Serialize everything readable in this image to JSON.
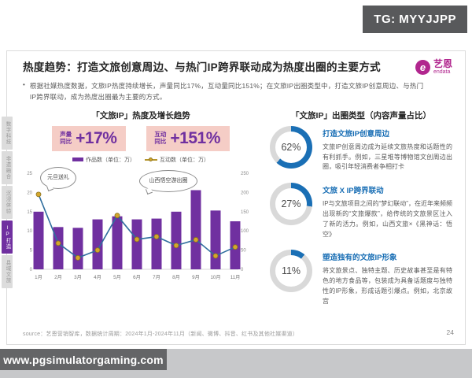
{
  "badge": {
    "text": "TG: MYYJJPP"
  },
  "watermark": {
    "url": "www.pgsimulatorgaming.com"
  },
  "page": {
    "number": "24"
  },
  "sidebar": {
    "items": [
      {
        "label": "数字科技",
        "active": false
      },
      {
        "label": "非遗融合",
        "active": false
      },
      {
        "label": "沉浸体验",
        "active": false
      },
      {
        "label": "IP打造",
        "active": true
      },
      {
        "label": "县域文旅",
        "active": false
      }
    ]
  },
  "header": {
    "title": "热度趋势：打造文旅创意周边、与热门IP跨界联动成为热度出圈的主要方式",
    "logo": {
      "cn": "艺恩",
      "en": "endata",
      "mark": "e"
    },
    "bullet": "根据社媒热度数据，文旅IP热度持续增长，声量同比17%，互动量同比151%；在文旅IP出圈类型中，打造文旅IP创意周边、与热门IP跨界联动，成为热度出圈最为主要的方式。"
  },
  "left_panel": {
    "title": "「文旅IP」热度及增长趋势",
    "stats": [
      {
        "label_line1": "声量",
        "label_line2": "同比",
        "value": "+17%"
      },
      {
        "label_line1": "互动",
        "label_line2": "同比",
        "value": "+151%"
      }
    ],
    "annotations": {
      "a0": "元旦送礼",
      "a1": "山西悟空游出圈"
    }
  },
  "chart_data": {
    "type": "combo",
    "title": "「文旅IP」热度及增长趋势",
    "categories": [
      "1月",
      "2月",
      "3月",
      "4月",
      "5月",
      "6月",
      "7月",
      "8月",
      "9月",
      "10月",
      "11月"
    ],
    "series": [
      {
        "name": "作品数（单位：万）",
        "type": "bar",
        "axis": "left",
        "color": "#7030a0",
        "values": [
          15,
          11,
          10.8,
          13,
          13.8,
          13,
          13.2,
          15,
          20.6,
          15.3,
          12.5
        ]
      },
      {
        "name": "互动数（单位：万）",
        "type": "line",
        "axis": "right",
        "color": "#2f6e9e",
        "marker_color": "#d4a72c",
        "values": [
          195,
          68,
          30,
          50,
          140,
          78,
          85,
          62,
          77,
          35,
          58
        ]
      }
    ],
    "left_axis": {
      "min": 0,
      "max": 25,
      "step": 5
    },
    "right_axis": {
      "min": 0,
      "max": 250,
      "step": 50
    },
    "grid": false,
    "legend_position": "top"
  },
  "right_panel": {
    "title": "「文旅IP」出圈类型（内容声量占比）",
    "items": [
      {
        "percent": 62,
        "label": "62%",
        "title": "打造文旅IP创意周边",
        "desc": "文旅IP创意周边成为延续文旅热度和话题性的有利抓手。例如，三星堆等博物馆文创周边出圈，吸引年轻消费者争相打卡"
      },
      {
        "percent": 27,
        "label": "27%",
        "title": "文旅 X IP跨界联动",
        "desc": "IP与文旅项目之间的“梦幻联动”，在近年来频频出现新的“文旅爆款”，给传统的文旅景区注入了新的活力。例如，山西文旅×《黑神话：悟空》"
      },
      {
        "percent": 11,
        "label": "11%",
        "title": "塑造独有的文旅IP形象",
        "desc": "将文旅景点、独特主题、历史故事甚至是有特色的地方食品等，包装成为具备话题度与独特性的IP形象，形成话题引爆点。例如，北京故宫"
      }
    ]
  },
  "footer": {
    "source": "source：艺恩营销智库，数据统计周期：2024年1月-2024年11月（新闻、微博、抖音、红书及其他社媒渠道）"
  }
}
